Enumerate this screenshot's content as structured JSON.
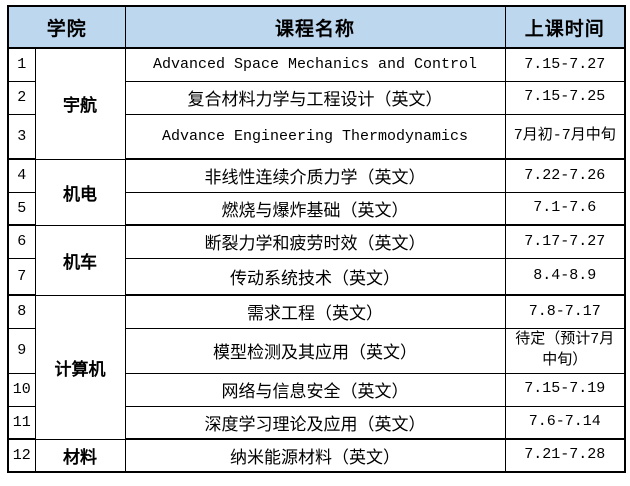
{
  "table": {
    "headers": {
      "college": "学院",
      "course": "课程名称",
      "time": "上课时间"
    },
    "groups": [
      {
        "name": "宇航"
      },
      {
        "name": "机电"
      },
      {
        "name": "机车"
      },
      {
        "name": "计算机"
      },
      {
        "name": "材料"
      }
    ],
    "rows": [
      {
        "num": "1",
        "course": "Advanced Space Mechanics and Control",
        "time": "7.15-7.27"
      },
      {
        "num": "2",
        "course": "复合材料力学与工程设计（英文）",
        "time": "7.15-7.25"
      },
      {
        "num": "3",
        "course": "Advance Engineering Thermodynamics",
        "time": "7月初-7月中旬"
      },
      {
        "num": "4",
        "course": "非线性连续介质力学（英文）",
        "time": "7.22-7.26"
      },
      {
        "num": "5",
        "course": "燃烧与爆炸基础（英文）",
        "time": "7.1-7.6"
      },
      {
        "num": "6",
        "course": "断裂力学和疲劳时效（英文）",
        "time": "7.17-7.27"
      },
      {
        "num": "7",
        "course": "传动系统技术（英文）",
        "time": "8.4-8.9"
      },
      {
        "num": "8",
        "course": "需求工程（英文）",
        "time": "7.8-7.17"
      },
      {
        "num": "9",
        "course": "模型检测及其应用（英文）",
        "time": "待定（预计7月中旬）"
      },
      {
        "num": "10",
        "course": "网络与信息安全（英文）",
        "time": "7.15-7.19"
      },
      {
        "num": "11",
        "course": "深度学习理论及应用（英文）",
        "time": "7.6-7.14"
      },
      {
        "num": "12",
        "course": "纳米能源材料（英文）",
        "time": "7.21-7.28"
      }
    ],
    "colors": {
      "header_bg": "#bdd7ee",
      "border": "#000000",
      "text": "#000000"
    }
  }
}
